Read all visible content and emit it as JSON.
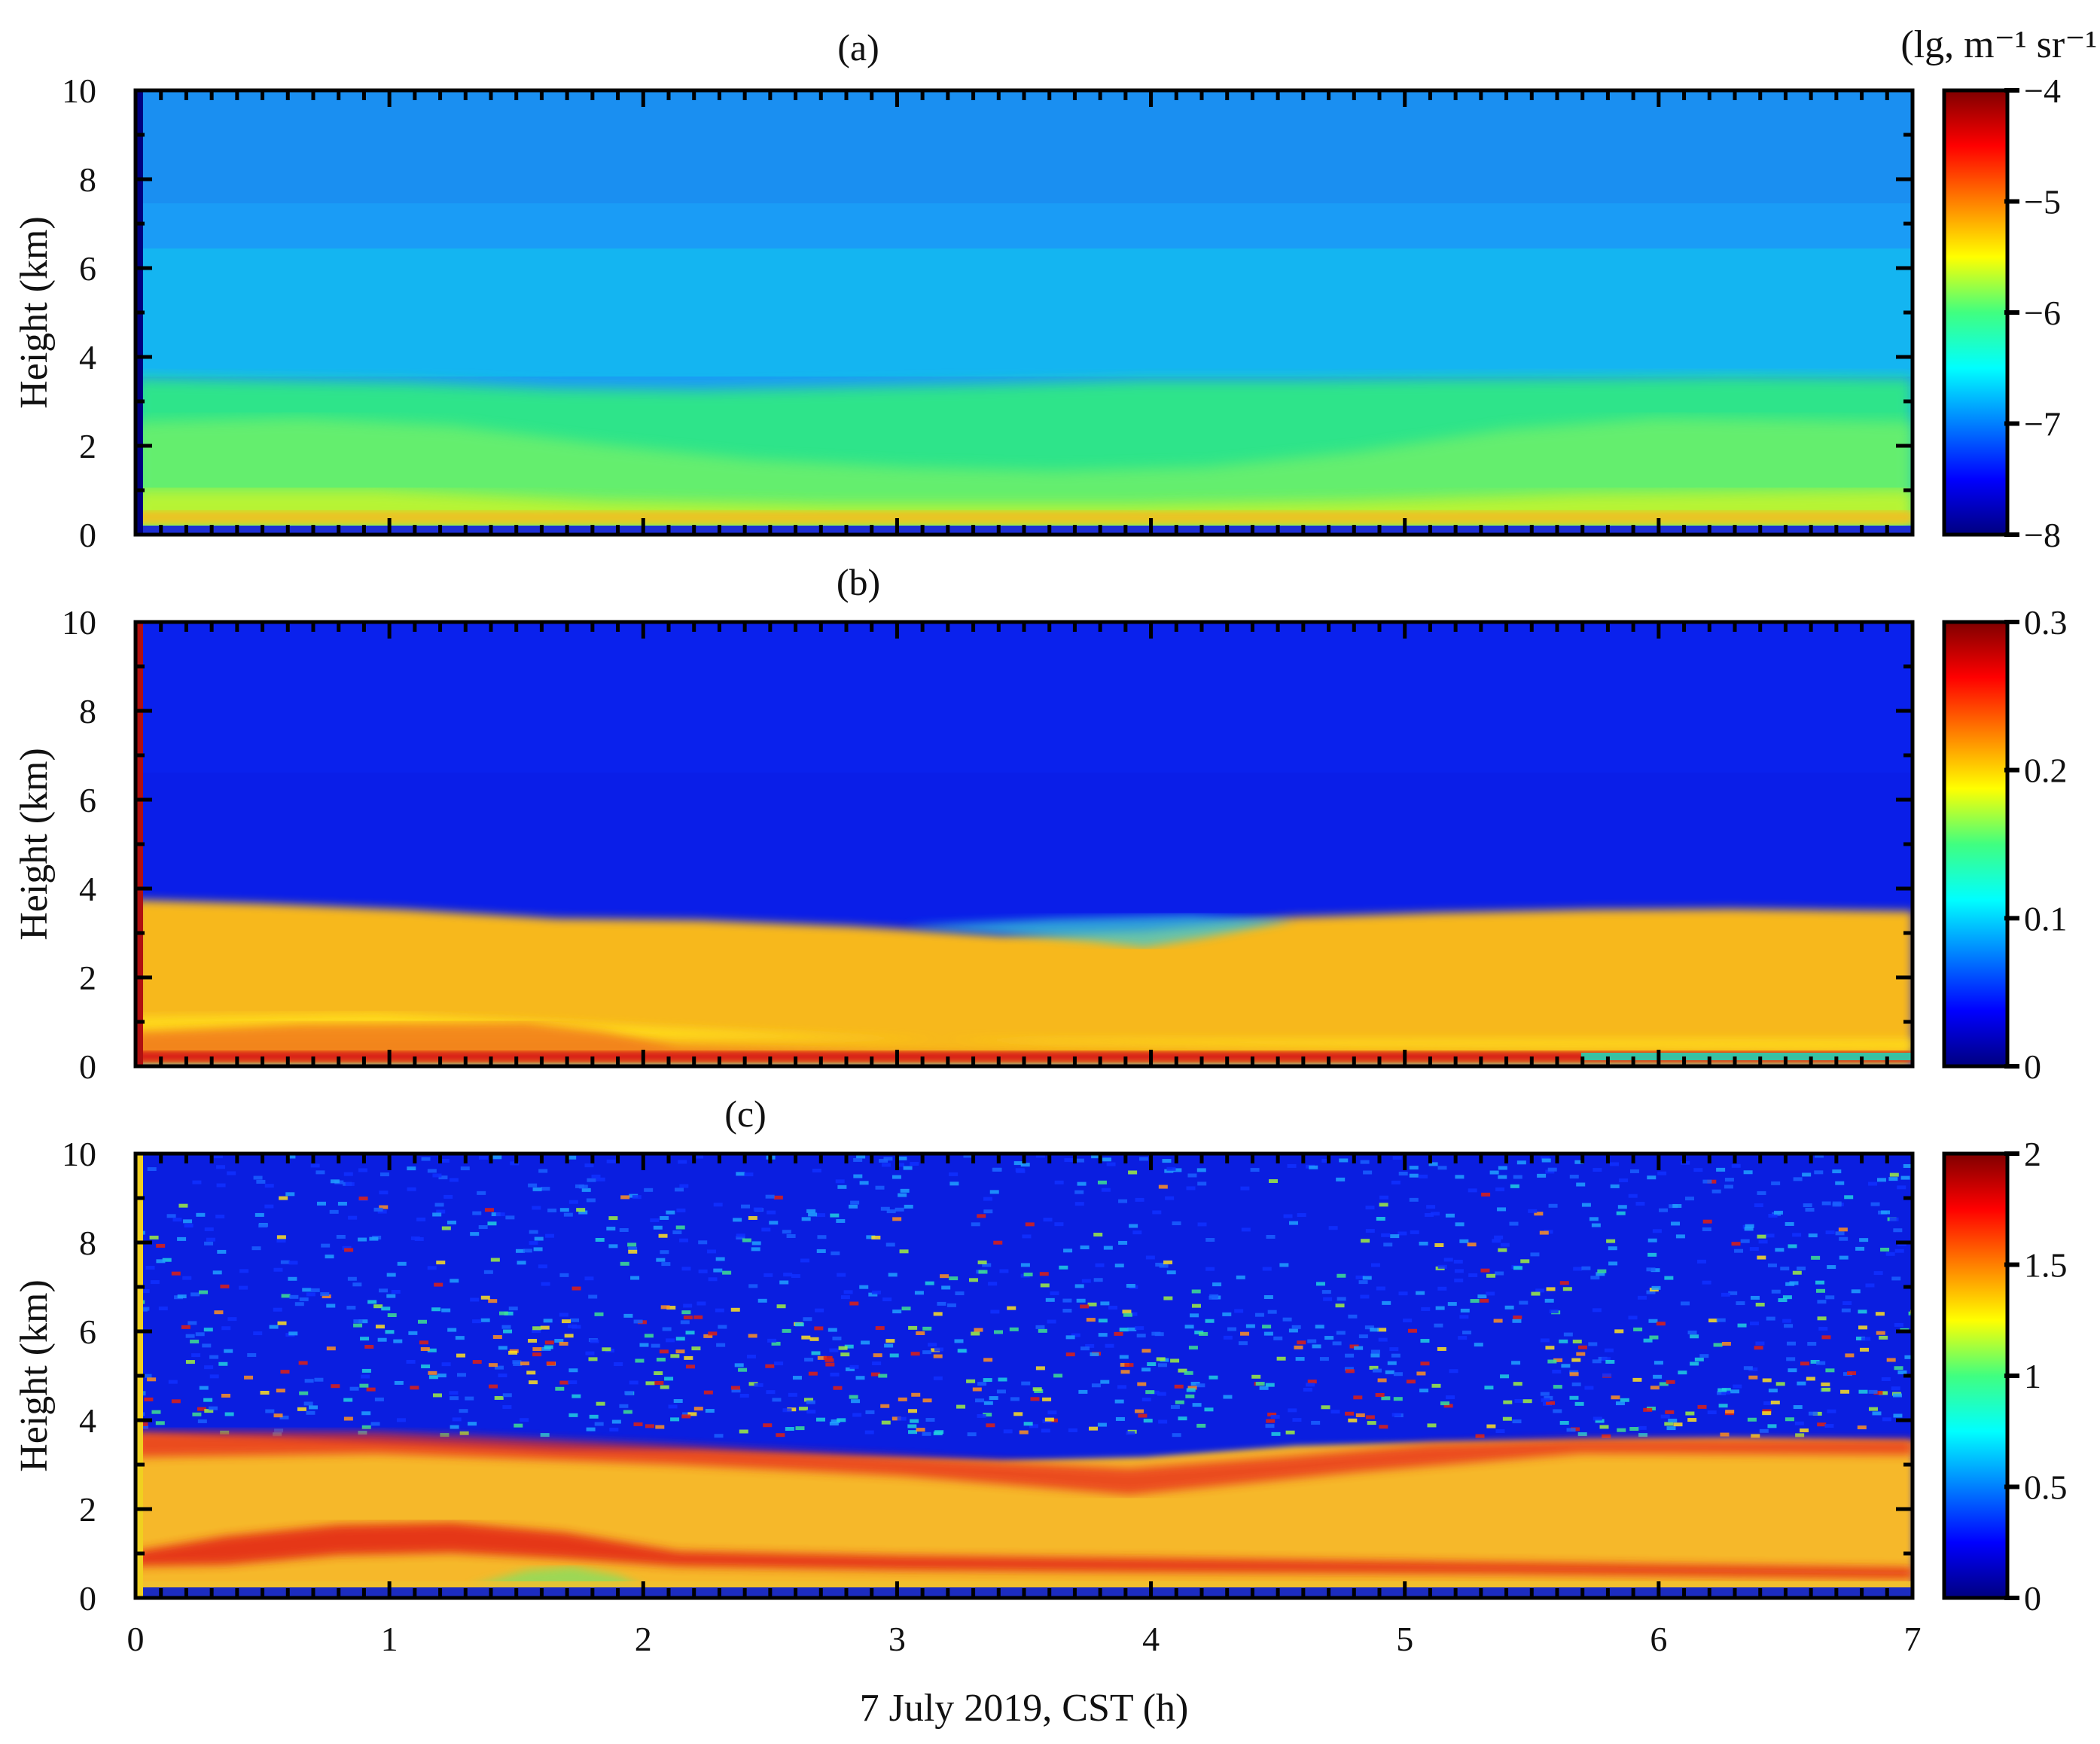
{
  "chart_data": [
    {
      "type": "heatmap",
      "panel_label": "(a)",
      "ylabel": "Height (km)",
      "xlim": [
        0,
        7
      ],
      "ylim": [
        0,
        10
      ],
      "yticks": [
        "0",
        "2",
        "4",
        "6",
        "8",
        "10"
      ],
      "colorbar": {
        "title": "(lg, m⁻¹ sr⁻¹ )",
        "range": [
          -8,
          -4
        ],
        "ticks": [
          "-8",
          "-7",
          "-6",
          "-5",
          "-4"
        ],
        "colormap": "jet"
      },
      "layer_top_km": [
        3.7,
        3.6,
        3.5,
        3.4,
        3.5,
        3.5,
        3.6,
        3.6
      ]
    },
    {
      "type": "heatmap",
      "panel_label": "(b)",
      "ylabel": "Height (km)",
      "xlim": [
        0,
        7
      ],
      "ylim": [
        0,
        10
      ],
      "yticks": [
        "0",
        "2",
        "4",
        "6",
        "8",
        "10"
      ],
      "colorbar": {
        "range": [
          0,
          0.3
        ],
        "ticks": [
          "0",
          "0.1",
          "0.2",
          "0.3"
        ],
        "colormap": "jet"
      },
      "layer_top_km": [
        3.9,
        3.6,
        3.5,
        3.2,
        3.4,
        3.5,
        3.6,
        3.6
      ]
    },
    {
      "type": "heatmap",
      "panel_label": "(c)",
      "ylabel": "Height (km)",
      "xlabel": "7 July 2019, CST (h)",
      "xlim": [
        0,
        7
      ],
      "ylim": [
        0,
        10
      ],
      "yticks": [
        "0",
        "2",
        "4",
        "6",
        "8",
        "10"
      ],
      "xticks": [
        "0",
        "1",
        "2",
        "3",
        "4",
        "5",
        "6",
        "7"
      ],
      "colorbar": {
        "range": [
          0,
          2
        ],
        "ticks": [
          "0",
          "0.5",
          "1",
          "1.5",
          "2"
        ],
        "colormap": "jet"
      },
      "layer_top_km": [
        3.8,
        3.6,
        3.5,
        3.4,
        3.5,
        3.6,
        3.6,
        3.6
      ]
    }
  ]
}
